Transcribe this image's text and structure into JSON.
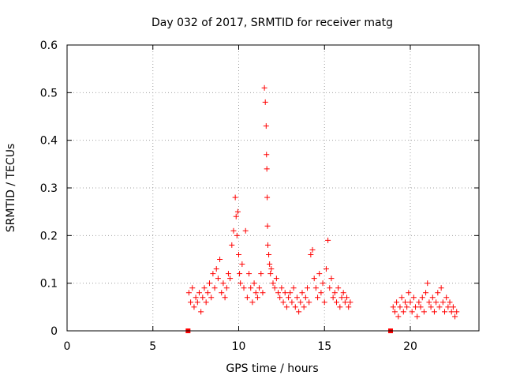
{
  "chart_data": {
    "type": "scatter",
    "title": "Day 032 of 2017, SRMTID for receiver matg",
    "xlabel": "GPS time / hours",
    "ylabel": "SRMTID / TECUs",
    "xlim": [
      0,
      24
    ],
    "ylim": [
      0,
      0.6
    ],
    "xticks": [
      0,
      5,
      10,
      15,
      20
    ],
    "xtick_labels": [
      "0",
      "5",
      "10",
      "15",
      "20"
    ],
    "yticks": [
      0,
      0.1,
      0.2,
      0.3,
      0.4,
      0.5,
      0.6
    ],
    "ytick_labels": [
      "0",
      "0.1",
      "0.2",
      "0.3",
      "0.4",
      "0.5",
      "0.6"
    ],
    "grid": true,
    "marker": "plus",
    "color": "#ff0000",
    "zero_markers_x": [
      7.05,
      18.85
    ],
    "series": [
      {
        "name": "SRMTID",
        "x": [
          7.1,
          7.2,
          7.3,
          7.4,
          7.5,
          7.6,
          7.7,
          7.8,
          7.9,
          8.0,
          8.1,
          8.2,
          8.3,
          8.4,
          8.5,
          8.6,
          8.7,
          8.8,
          8.9,
          9.0,
          9.1,
          9.2,
          9.3,
          9.4,
          9.5,
          9.6,
          9.7,
          9.8,
          9.85,
          9.9,
          9.95,
          10.0,
          10.05,
          10.1,
          10.2,
          10.3,
          10.4,
          10.5,
          10.6,
          10.7,
          10.8,
          10.9,
          11.0,
          11.1,
          11.2,
          11.3,
          11.4,
          11.5,
          11.55,
          11.6,
          11.62,
          11.64,
          11.66,
          11.68,
          11.7,
          11.75,
          11.8,
          11.85,
          11.9,
          12.0,
          12.1,
          12.2,
          12.3,
          12.4,
          12.5,
          12.6,
          12.7,
          12.8,
          12.9,
          13.0,
          13.1,
          13.2,
          13.3,
          13.4,
          13.5,
          13.6,
          13.7,
          13.8,
          13.9,
          14.0,
          14.1,
          14.2,
          14.3,
          14.4,
          14.5,
          14.6,
          14.7,
          14.8,
          14.9,
          15.0,
          15.1,
          15.2,
          15.3,
          15.4,
          15.5,
          15.6,
          15.7,
          15.8,
          15.9,
          16.0,
          16.1,
          16.2,
          16.3,
          16.4,
          16.5,
          19.0,
          19.1,
          19.2,
          19.3,
          19.4,
          19.5,
          19.6,
          19.7,
          19.8,
          19.9,
          20.0,
          20.1,
          20.2,
          20.3,
          20.4,
          20.5,
          20.6,
          20.7,
          20.8,
          20.9,
          21.0,
          21.1,
          21.2,
          21.3,
          21.4,
          21.5,
          21.6,
          21.7,
          21.8,
          21.9,
          22.0,
          22.1,
          22.2,
          22.3,
          22.4,
          22.5,
          22.6,
          22.7
        ],
        "y": [
          0.08,
          0.06,
          0.09,
          0.05,
          0.07,
          0.06,
          0.08,
          0.04,
          0.07,
          0.09,
          0.06,
          0.08,
          0.1,
          0.07,
          0.12,
          0.09,
          0.13,
          0.11,
          0.15,
          0.08,
          0.1,
          0.07,
          0.09,
          0.12,
          0.11,
          0.18,
          0.21,
          0.28,
          0.24,
          0.2,
          0.25,
          0.16,
          0.12,
          0.1,
          0.14,
          0.09,
          0.21,
          0.07,
          0.12,
          0.09,
          0.06,
          0.1,
          0.08,
          0.07,
          0.09,
          0.12,
          0.08,
          0.51,
          0.48,
          0.43,
          0.37,
          0.34,
          0.28,
          0.22,
          0.18,
          0.16,
          0.14,
          0.12,
          0.13,
          0.1,
          0.09,
          0.11,
          0.08,
          0.07,
          0.09,
          0.06,
          0.08,
          0.05,
          0.07,
          0.08,
          0.06,
          0.09,
          0.05,
          0.07,
          0.04,
          0.06,
          0.08,
          0.05,
          0.07,
          0.09,
          0.06,
          0.16,
          0.17,
          0.11,
          0.09,
          0.07,
          0.12,
          0.08,
          0.1,
          0.06,
          0.13,
          0.19,
          0.09,
          0.11,
          0.07,
          0.08,
          0.06,
          0.09,
          0.05,
          0.07,
          0.08,
          0.06,
          0.07,
          0.05,
          0.06,
          0.05,
          0.04,
          0.06,
          0.03,
          0.05,
          0.07,
          0.04,
          0.06,
          0.05,
          0.08,
          0.06,
          0.04,
          0.07,
          0.05,
          0.03,
          0.06,
          0.05,
          0.07,
          0.04,
          0.08,
          0.1,
          0.06,
          0.05,
          0.07,
          0.04,
          0.06,
          0.08,
          0.05,
          0.09,
          0.06,
          0.04,
          0.07,
          0.05,
          0.06,
          0.04,
          0.05,
          0.03,
          0.04
        ]
      }
    ]
  }
}
